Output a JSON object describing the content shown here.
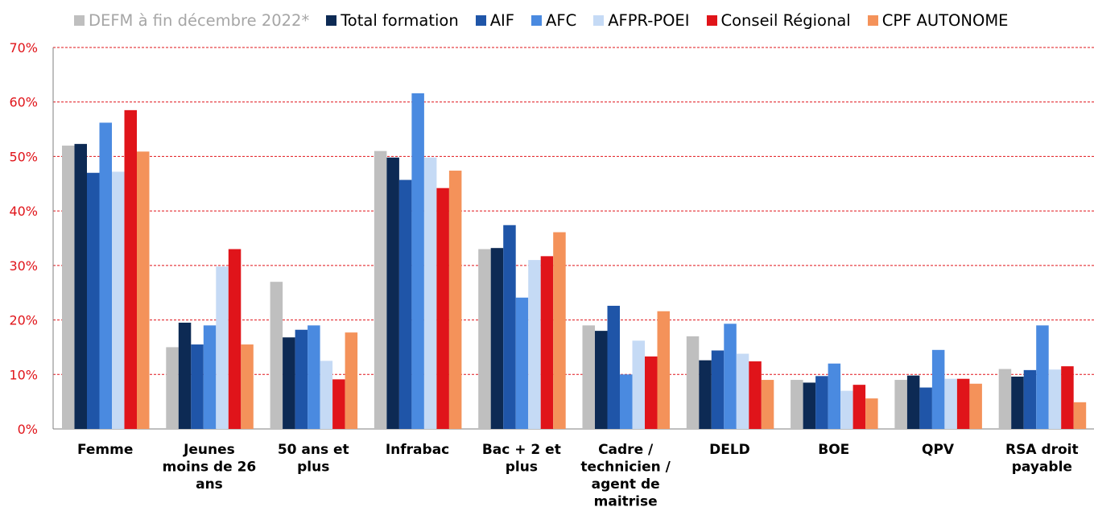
{
  "chart_data": {
    "type": "bar",
    "ylim": [
      0,
      70
    ],
    "yticks": [
      0,
      10,
      20,
      30,
      40,
      50,
      60,
      70
    ],
    "ytick_labels": [
      "0%",
      "10%",
      "20%",
      "30%",
      "40%",
      "50%",
      "60%",
      "70%"
    ],
    "grid": true,
    "legend_position": "top",
    "categories": [
      [
        "Femme"
      ],
      [
        "Jeunes",
        "moins de 26",
        "ans"
      ],
      [
        "50 ans et",
        "plus"
      ],
      [
        "Infrabac"
      ],
      [
        "Bac + 2 et",
        "plus"
      ],
      [
        "Cadre /",
        "technicien /",
        "agent de",
        "maitrise"
      ],
      [
        "DELD"
      ],
      [
        "BOE"
      ],
      [
        "QPV"
      ],
      [
        "RSA droit",
        "payable"
      ]
    ],
    "series": [
      {
        "name": "DEFM à fin décembre 2022*",
        "color": "#bfbfbf",
        "values": [
          52,
          15,
          27,
          51,
          33,
          19,
          17,
          9,
          9,
          11
        ]
      },
      {
        "name": "Total formation",
        "color": "#0d2a54",
        "values": [
          52.3,
          19.5,
          16.8,
          49.8,
          33.2,
          18,
          12.6,
          8.5,
          9.8,
          9.6
        ]
      },
      {
        "name": "AIF",
        "color": "#1f55a8",
        "values": [
          47,
          15.5,
          18.2,
          45.7,
          37.4,
          22.6,
          14.4,
          9.7,
          7.6,
          10.8
        ]
      },
      {
        "name": "AFC",
        "color": "#4a8ae0",
        "values": [
          56.2,
          19,
          19,
          61.6,
          24.1,
          10,
          19.3,
          12,
          14.5,
          19
        ]
      },
      {
        "name": "AFPR-POEI",
        "color": "#c5daf5",
        "values": [
          47.2,
          29.8,
          12.5,
          49.8,
          31,
          16.2,
          13.8,
          7,
          9.2,
          10.9
        ]
      },
      {
        "name": "Conseil Régional",
        "color": "#e0141a",
        "values": [
          58.5,
          33,
          9.1,
          44.2,
          31.7,
          13.3,
          12.4,
          8.1,
          9.2,
          11.5
        ]
      },
      {
        "name": "CPF AUTONOME",
        "color": "#f4925a",
        "values": [
          50.9,
          15.5,
          17.7,
          47.4,
          36.1,
          21.6,
          9,
          5.6,
          8.3,
          4.9
        ]
      }
    ]
  },
  "colors": {
    "axis_tick_label": "#e0141a",
    "gridline": "#e0141a",
    "legend_first_label": "#a6a6a6"
  }
}
